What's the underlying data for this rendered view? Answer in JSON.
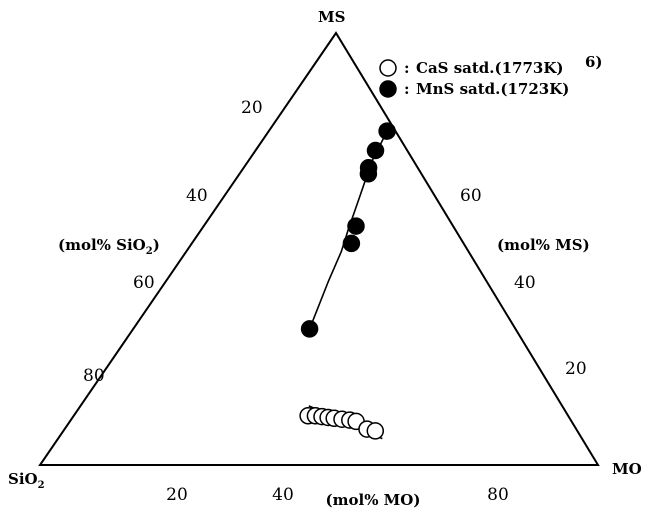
{
  "chart_data": {
    "type": "scatter",
    "diagram": "ternary",
    "title": "",
    "vertices": {
      "top": "MS",
      "left": "SiO2",
      "right": "MO"
    },
    "axes": {
      "mo": {
        "label": "(mol% MO)",
        "ticks": [
          "20",
          "40",
          "80"
        ],
        "tick_values": [
          20,
          40,
          80
        ]
      },
      "ms": {
        "label": "(mol% MS)",
        "ticks": [
          "20",
          "40",
          "60"
        ],
        "tick_values": [
          20,
          40,
          60
        ]
      },
      "sio2": {
        "label": "(mol% SiO2)",
        "ticks": [
          "20",
          "40",
          "60",
          "80"
        ],
        "tick_values": [
          20,
          40,
          60,
          80
        ]
      }
    },
    "reference_tag": "6)",
    "legend_position": "top-right",
    "series": [
      {
        "name": "CaS satd.(1773K)",
        "marker": "open-circle",
        "color": "#000000",
        "points": [
          {
            "MO": 42.0,
            "MS": 11.4,
            "SiO2": 46.6
          },
          {
            "MO": 43.3,
            "MS": 11.4,
            "SiO2": 45.3
          },
          {
            "MO": 44.6,
            "MS": 11.2,
            "SiO2": 44.2
          },
          {
            "MO": 45.8,
            "MS": 11.0,
            "SiO2": 43.2
          },
          {
            "MO": 47.0,
            "MS": 10.8,
            "SiO2": 42.2
          },
          {
            "MO": 48.5,
            "MS": 10.6,
            "SiO2": 40.9
          },
          {
            "MO": 50.0,
            "MS": 10.4,
            "SiO2": 39.6
          },
          {
            "MO": 51.3,
            "MS": 10.1,
            "SiO2": 38.6
          },
          {
            "MO": 54.2,
            "MS": 8.3,
            "SiO2": 37.5
          },
          {
            "MO": 55.9,
            "MS": 7.9,
            "SiO2": 36.2
          }
        ],
        "fit_line": [
          {
            "MO": 40.9,
            "MS": 13.7,
            "SiO2": 45.4
          },
          {
            "MO": 58.1,
            "MS": 6.1,
            "SiO2": 35.8
          }
        ]
      },
      {
        "name": "MnS satd.(1723K)",
        "marker": "filled-circle",
        "color": "#000000",
        "points": [
          {
            "MO": 21.2,
            "MS": 77.3,
            "SiO2": 1.5
          },
          {
            "MO": 21.5,
            "MS": 72.8,
            "SiO2": 5.7
          },
          {
            "MO": 22.4,
            "MS": 68.8,
            "SiO2": 8.8
          },
          {
            "MO": 23.1,
            "MS": 67.4,
            "SiO2": 9.5
          },
          {
            "MO": 27.3,
            "MS": 55.3,
            "SiO2": 17.4
          },
          {
            "MO": 28.6,
            "MS": 51.3,
            "SiO2": 20.1
          },
          {
            "MO": 31.6,
            "MS": 31.5,
            "SiO2": 36.9
          }
        ],
        "curve": [
          {
            "MO": 21.2,
            "MS": 77.3,
            "SiO2": 1.5
          },
          {
            "MO": 22.2,
            "MS": 70.2,
            "SiO2": 7.6
          },
          {
            "MO": 24.3,
            "MS": 62.3,
            "SiO2": 13.4
          },
          {
            "MO": 26.4,
            "MS": 54.3,
            "SiO2": 19.3
          },
          {
            "MO": 27.8,
            "MS": 49.4,
            "SiO2": 22.8
          },
          {
            "MO": 29.1,
            "MS": 42.6,
            "SiO2": 28.3
          },
          {
            "MO": 31.6,
            "MS": 31.5,
            "SiO2": 36.9
          }
        ]
      }
    ]
  }
}
